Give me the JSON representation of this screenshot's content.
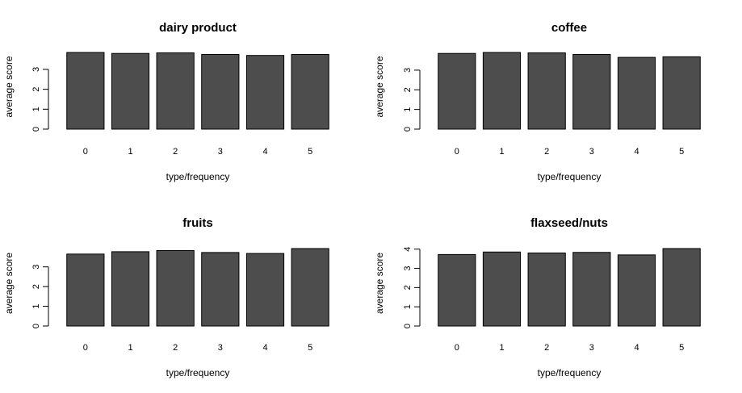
{
  "chart_data": [
    {
      "type": "bar",
      "title": "dairy product",
      "xlabel": "type/frequency",
      "ylabel": "average score",
      "categories": [
        "0",
        "1",
        "2",
        "3",
        "4",
        "5"
      ],
      "values": [
        3.85,
        3.8,
        3.83,
        3.75,
        3.7,
        3.75
      ],
      "ylim": [
        0,
        3.85
      ],
      "yticks": [
        0,
        1,
        2,
        3
      ]
    },
    {
      "type": "bar",
      "title": "coffee",
      "xlabel": "type/frequency",
      "ylabel": "average score",
      "categories": [
        "0",
        "1",
        "2",
        "3",
        "4",
        "5"
      ],
      "values": [
        3.85,
        3.9,
        3.88,
        3.8,
        3.65,
        3.68
      ],
      "ylim": [
        0,
        3.9
      ],
      "yticks": [
        0,
        1,
        2,
        3
      ]
    },
    {
      "type": "bar",
      "title": "fruits",
      "xlabel": "type/frequency",
      "ylabel": "average score",
      "categories": [
        "0",
        "1",
        "2",
        "3",
        "4",
        "5"
      ],
      "values": [
        3.65,
        3.77,
        3.83,
        3.73,
        3.68,
        3.93
      ],
      "ylim": [
        0,
        3.93
      ],
      "yticks": [
        0,
        1,
        2,
        3
      ]
    },
    {
      "type": "bar",
      "title": "flaxseed/nuts",
      "xlabel": "type/frequency",
      "ylabel": "average score",
      "categories": [
        "0",
        "1",
        "2",
        "3",
        "4",
        "5"
      ],
      "values": [
        3.72,
        3.85,
        3.8,
        3.83,
        3.7,
        4.03
      ],
      "ylim": [
        0,
        4.03
      ],
      "yticks": [
        0,
        1,
        2,
        3,
        4
      ]
    }
  ]
}
